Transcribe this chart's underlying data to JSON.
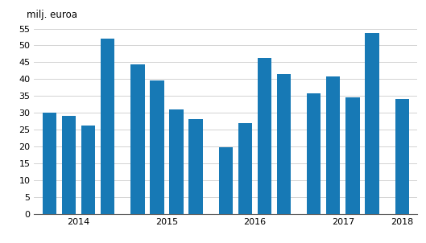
{
  "title": "milj. euroa",
  "bar_color": "#1779b5",
  "values": [
    30.1,
    29.2,
    26.3,
    52.1,
    44.5,
    39.7,
    31.1,
    28.1,
    19.8,
    27.0,
    46.2,
    41.4,
    35.8,
    40.7,
    34.6,
    53.7,
    34.1
  ],
  "year_labels": [
    "2014",
    "2015",
    "2016",
    "2017",
    "2018"
  ],
  "ylim": [
    0,
    57
  ],
  "yticks": [
    0,
    5,
    10,
    15,
    20,
    25,
    30,
    35,
    40,
    45,
    50,
    55
  ],
  "bar_width": 0.72,
  "background_color": "#ffffff",
  "grid_color": "#cccccc",
  "title_fontsize": 8.5,
  "tick_fontsize": 8.0
}
